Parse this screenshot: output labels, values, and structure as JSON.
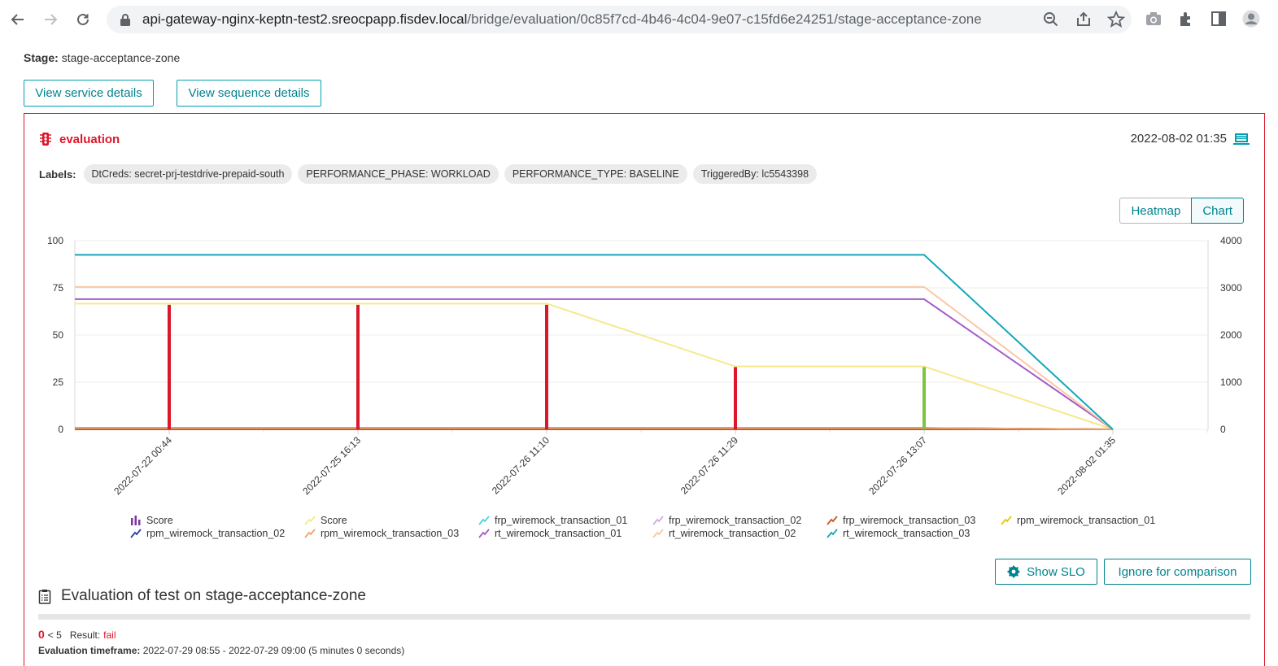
{
  "browser": {
    "url_host": "api-gateway-nginx-keptn-test2.sreocpapp.fisdev.local",
    "url_path": "/bridge/evaluation/0c85f7cd-4b46-4c04-9e07-c15fd6e24251/stage-acceptance-zone"
  },
  "stage": {
    "label": "Stage:",
    "value": "stage-acceptance-zone"
  },
  "buttons": {
    "view_service": "View service details",
    "view_sequence": "View sequence details",
    "show_slo": "Show SLO",
    "ignore": "Ignore for comparison"
  },
  "evaluation": {
    "title": "evaluation",
    "date": "2022-08-02 01:35",
    "labels_title": "Labels:",
    "labels": [
      "DtCreds: secret-prj-testdrive-prepaid-south",
      "PERFORMANCE_PHASE: WORKLOAD",
      "PERFORMANCE_TYPE: BASELINE",
      "TriggeredBy: lc5543398"
    ]
  },
  "view_toggle": {
    "heatmap": "Heatmap",
    "chart": "Chart",
    "active": "Chart"
  },
  "chart_data": {
    "type": "bar",
    "x": [
      "2022-07-22 00:44",
      "2022-07-25 16:13",
      "2022-07-26 11:10",
      "2022-07-26 11:29",
      "2022-07-26 13:07",
      "2022-08-02 01:35"
    ],
    "y_left_ticks": [
      "0",
      "25",
      "50",
      "75",
      "100"
    ],
    "y_right_ticks": [
      "0",
      "1000",
      "2000",
      "3000",
      "4000"
    ],
    "ylim_left": [
      0,
      100
    ],
    "ylim_right": [
      0,
      4000
    ],
    "grid": true,
    "legend_position": "bottom",
    "series": [
      {
        "name": "Score",
        "type": "bar",
        "axis": "left",
        "color": "#7c38a1",
        "values": [
          66,
          66,
          66,
          33,
          33,
          0
        ],
        "bar_colors": [
          "#dc172a",
          "#dc172a",
          "#dc172a",
          "#dc172a",
          "#7dc540",
          "#dc172a"
        ]
      },
      {
        "name": "Score",
        "type": "line",
        "axis": "left",
        "color": "#f5e98b",
        "values": [
          66.67,
          66.67,
          66.67,
          33.33,
          33.33,
          0
        ]
      },
      {
        "name": "frp_wiremock_transaction_01",
        "type": "line",
        "axis": "right",
        "color": "#4fd5e0",
        "values": [
          0,
          0,
          0,
          0,
          0,
          0
        ]
      },
      {
        "name": "frp_wiremock_transaction_02",
        "type": "line",
        "axis": "right",
        "color": "#d5a9e9",
        "values": [
          0,
          0,
          0,
          0,
          0,
          0
        ]
      },
      {
        "name": "frp_wiremock_transaction_03",
        "type": "line",
        "axis": "right",
        "color": "#c9581c",
        "values": [
          0,
          0,
          0,
          0,
          0,
          0
        ]
      },
      {
        "name": "rpm_wiremock_transaction_01",
        "type": "line",
        "axis": "right",
        "color": "#e6c900",
        "values": [
          30,
          30,
          30,
          30,
          30,
          0
        ]
      },
      {
        "name": "rpm_wiremock_transaction_02",
        "type": "line",
        "axis": "right",
        "color": "#2f3ea6",
        "values": [
          30,
          30,
          30,
          30,
          30,
          0
        ]
      },
      {
        "name": "rpm_wiremock_transaction_03",
        "type": "line",
        "axis": "right",
        "color": "#f2a36b",
        "values": [
          30,
          30,
          30,
          30,
          30,
          0
        ]
      },
      {
        "name": "rt_wiremock_transaction_01",
        "type": "line",
        "axis": "right",
        "color": "#a35cc7",
        "values": [
          2760,
          2760,
          2760,
          2760,
          2760,
          0
        ]
      },
      {
        "name": "rt_wiremock_transaction_02",
        "type": "line",
        "axis": "right",
        "color": "#f9c8a5",
        "values": [
          3020,
          3020,
          3020,
          3020,
          3020,
          0
        ]
      },
      {
        "name": "rt_wiremock_transaction_03",
        "type": "line",
        "axis": "right",
        "color": "#14a8b9",
        "values": [
          3700,
          3700,
          3700,
          3700,
          3700,
          0
        ]
      }
    ]
  },
  "legend": [
    {
      "label": "Score",
      "kind": "bars",
      "color": "#7c38a1"
    },
    {
      "label": "Score",
      "kind": "line",
      "color": "#f5e98b"
    },
    {
      "label": "frp_wiremock_transaction_01",
      "kind": "line",
      "color": "#4fd5e0"
    },
    {
      "label": "frp_wiremock_transaction_02",
      "kind": "line",
      "color": "#d5a9e9"
    },
    {
      "label": "frp_wiremock_transaction_03",
      "kind": "line",
      "color": "#c9581c"
    },
    {
      "label": "rpm_wiremock_transaction_01",
      "kind": "line",
      "color": "#e6c900"
    },
    {
      "label": "rpm_wiremock_transaction_02",
      "kind": "line",
      "color": "#2f3ea6"
    },
    {
      "label": "rpm_wiremock_transaction_03",
      "kind": "line",
      "color": "#f2a36b"
    },
    {
      "label": "rt_wiremock_transaction_01",
      "kind": "line",
      "color": "#a35cc7"
    },
    {
      "label": "rt_wiremock_transaction_02",
      "kind": "line",
      "color": "#f9c8a5"
    },
    {
      "label": "rt_wiremock_transaction_03",
      "kind": "line",
      "color": "#14a8b9"
    }
  ],
  "summary": {
    "title": "Evaluation of test on stage-acceptance-zone",
    "score": "0",
    "score_suffix": "< 5",
    "result_label": "Result:",
    "result_value": "fail",
    "timeframe_label": "Evaluation timeframe:",
    "timeframe_value": "2022-07-29 08:55 - 2022-07-29 09:00 (5 minutes 0 seconds)"
  },
  "colors": {
    "accent": "#00848e",
    "fail": "#dc172a",
    "pass": "#7dc540"
  }
}
